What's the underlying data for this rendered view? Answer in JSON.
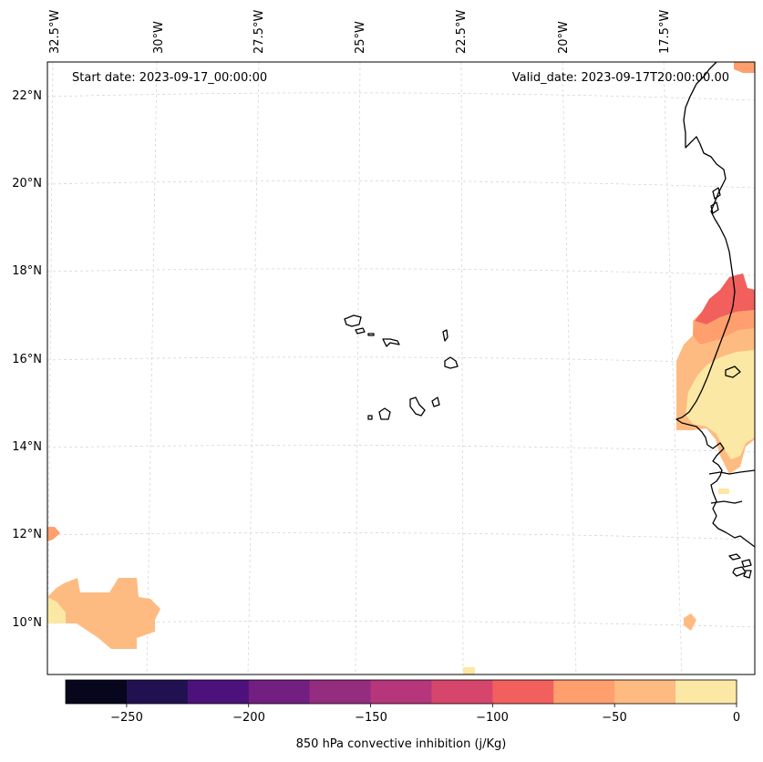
{
  "map": {
    "start_date": "Start date: 2023-09-17_00:00:00",
    "valid_date": "Valid_date: 2023-09-17T20:00:00.00",
    "lon_labels": [
      "32.5°W",
      "30°W",
      "27.5°W",
      "25°W",
      "22.5°W",
      "20°W",
      "17.5°W"
    ],
    "lat_labels": [
      "22°N",
      "20°N",
      "18°N",
      "16°N",
      "14°N",
      "12°N",
      "10°N"
    ],
    "coastline_color": "#000000",
    "grid_color": "#d0d0d0"
  },
  "colorbar": {
    "title": "850 hPa convective inhibition (j/Kg)",
    "tick_labels": [
      "−250",
      "−200",
      "−150",
      "−100",
      "−50",
      "0"
    ],
    "range": [
      -275,
      0
    ],
    "colors": [
      "#07061c",
      "#221150",
      "#4d117b",
      "#721f81",
      "#942c80",
      "#b5367a",
      "#d6456c",
      "#f1605d",
      "#fe9f6d",
      "#febb81",
      "#fce8a5"
    ],
    "levels": [
      -275,
      -250,
      -225,
      -200,
      -175,
      -150,
      -125,
      -100,
      -75,
      -50,
      -25,
      0
    ]
  }
}
